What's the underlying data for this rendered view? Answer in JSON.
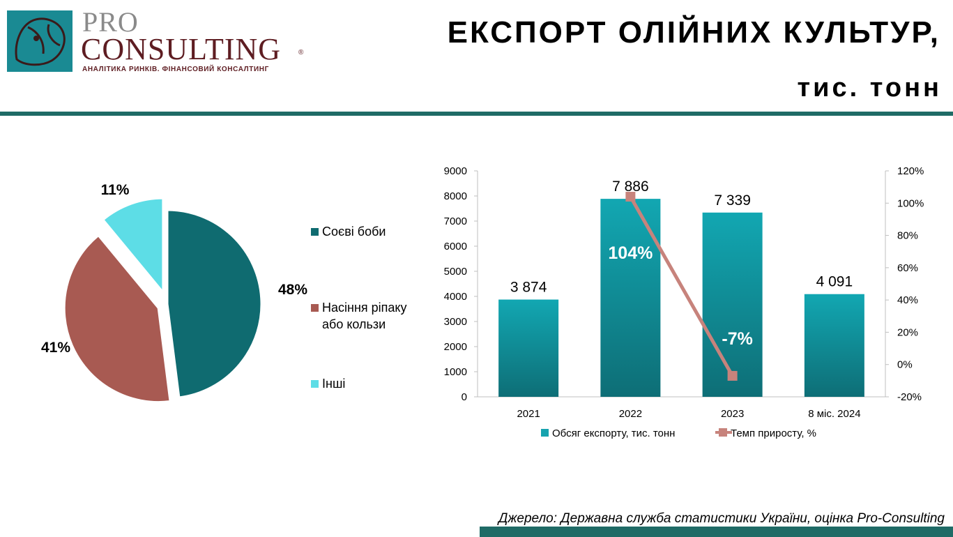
{
  "header": {
    "logo_pro": "PRO",
    "logo_consulting": "CONSULTING",
    "logo_reg": "®",
    "logo_tagline": "АНАЛІТИКА РИНКІВ. ФІНАНСОВИЙ КОНСАЛТИНГ",
    "title_line1": "ЕКСПОРТ ОЛІЙНИХ КУЛЬТУР,",
    "title_line2": "тис. тонн"
  },
  "footer": {
    "source": "Джерело:  Державна служба статистики України, оцінка Pro-Consulting"
  },
  "colors": {
    "brand_teal": "#1f6b66",
    "brand_maroon": "#5e1d22"
  },
  "chart_data": [
    {
      "type": "pie",
      "categories": [
        "Соєві боби",
        "Насіння ріпаку або кользи",
        "Інші"
      ],
      "values": [
        48,
        41,
        11
      ],
      "labels": [
        "48%",
        "41%",
        "11%"
      ],
      "colors": [
        "#0f6b70",
        "#a85a52",
        "#5ddde6"
      ],
      "legend": "right"
    },
    {
      "type": "bar",
      "categories": [
        "2021",
        "2022",
        "2023",
        "8 міс. 2024"
      ],
      "series": [
        {
          "name": "Обсяг експорту, тис. тонн",
          "type": "bar",
          "axis": "left",
          "values": [
            3874,
            7886,
            7339,
            4091
          ],
          "labels": [
            "3 874",
            "7 886",
            "7 339",
            "4 091"
          ],
          "color": "#16a3ae"
        },
        {
          "name": "Темп приросту, %",
          "type": "line",
          "axis": "right",
          "values": [
            null,
            104,
            -7,
            null
          ],
          "labels": [
            "",
            "104%",
            "-7%",
            ""
          ],
          "color": "#c7837c"
        }
      ],
      "ylim": [
        0,
        9000
      ],
      "y_ticks": [
        "0",
        "1000",
        "2000",
        "3000",
        "4000",
        "5000",
        "6000",
        "7000",
        "8000",
        "9000"
      ],
      "y2lim": [
        -20,
        120
      ],
      "y2_ticks": [
        "-20%",
        "0%",
        "20%",
        "40%",
        "60%",
        "80%",
        "100%",
        "120%"
      ],
      "grid": false,
      "legend": "bottom"
    }
  ]
}
